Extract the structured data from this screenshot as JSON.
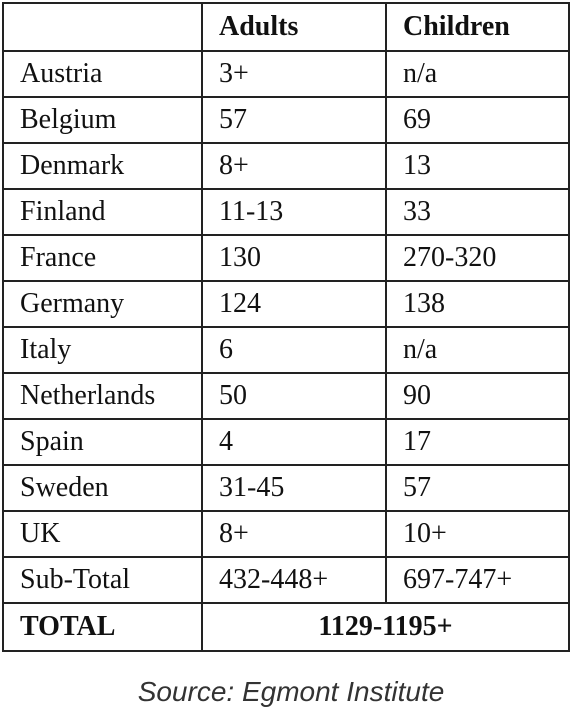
{
  "table": {
    "headers": [
      "",
      "Adults",
      "Children"
    ],
    "rows": [
      {
        "country": "Austria",
        "adults": "3+",
        "children": "n/a"
      },
      {
        "country": "Belgium",
        "adults": "57",
        "children": "69"
      },
      {
        "country": "Denmark",
        "adults": "8+",
        "children": "13"
      },
      {
        "country": "Finland",
        "adults": "11-13",
        "children": "33"
      },
      {
        "country": "France",
        "adults": "130",
        "children": "270-320"
      },
      {
        "country": "Germany",
        "adults": "124",
        "children": "138"
      },
      {
        "country": "Italy",
        "adults": "6",
        "children": "n/a"
      },
      {
        "country": "Netherlands",
        "adults": "50",
        "children": "90"
      },
      {
        "country": "Spain",
        "adults": "4",
        "children": "17"
      },
      {
        "country": "Sweden",
        "adults": "31-45",
        "children": "57"
      },
      {
        "country": "UK",
        "adults": "8+",
        "children": "10+"
      },
      {
        "country": "Sub-Total",
        "adults": "432-448+",
        "children": "697-747+"
      }
    ],
    "total": {
      "label": "TOTAL",
      "value": "1129-1195+"
    }
  },
  "source": "Source: Egmont Institute"
}
